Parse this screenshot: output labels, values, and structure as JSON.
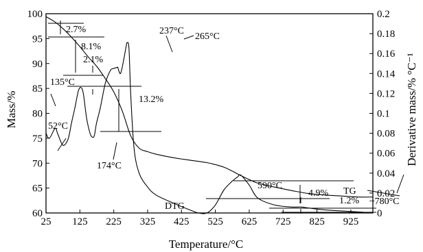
{
  "chart_data": {
    "type": "line",
    "xlabel": "Temperature/°C",
    "ylabel_left": "Mass/%",
    "ylabel_right": "Derivative mass/% °C⁻¹",
    "xlim": [
      25,
      990
    ],
    "ylim_left": [
      60,
      100
    ],
    "ylim_right": [
      0,
      0.2
    ],
    "grid": false,
    "x_ticks": [
      25,
      125,
      225,
      325,
      425,
      525,
      625,
      725,
      825,
      925
    ],
    "x_tick_labels": [
      "25",
      "125",
      "225",
      "325",
      "425",
      "525",
      "625",
      "725",
      "825",
      "925"
    ],
    "y_left_ticks": [
      60,
      65,
      70,
      75,
      80,
      85,
      90,
      95,
      100
    ],
    "y_left_tick_labels": [
      "60",
      "65",
      "70",
      "75",
      "80",
      "85",
      "90",
      "95",
      "100"
    ],
    "y_right_ticks": [
      0,
      0.02,
      0.04,
      0.06,
      0.08,
      0.1,
      0.12,
      0.14,
      0.16,
      0.18,
      0.2
    ],
    "y_right_tick_labels": [
      "0",
      "0.02",
      "0.04",
      "0.06",
      "0.08",
      "0.1",
      "0.12",
      "0.14",
      "0.16",
      "0.18",
      "0.2"
    ],
    "series": [
      {
        "name": "TG",
        "axis": "left",
        "x": [
          25,
          50,
          75,
          100,
          125,
          150,
          175,
          200,
          225,
          250,
          275,
          300,
          325,
          350,
          400,
          450,
          500,
          525,
          550,
          575,
          600,
          625,
          650,
          700,
          750,
          800,
          850,
          900,
          950,
          990
        ],
        "y": [
          99.4,
          98.4,
          97.0,
          95.3,
          93.4,
          91.3,
          89.4,
          87.0,
          84.3,
          80.5,
          75.5,
          73.0,
          72.3,
          71.8,
          71.1,
          70.6,
          70.1,
          69.7,
          69.2,
          68.4,
          67.5,
          66.7,
          66.0,
          65.2,
          64.5,
          63.9,
          63.6,
          63.4,
          63.2,
          63.2
        ]
      },
      {
        "name": "DTG",
        "axis": "right",
        "x": [
          25,
          35,
          52,
          60,
          75,
          90,
          100,
          110,
          120,
          128,
          135,
          145,
          155,
          162,
          168,
          174,
          185,
          200,
          215,
          225,
          235,
          237,
          245,
          255,
          262,
          265,
          270,
          275,
          285,
          300,
          325,
          350,
          400,
          450,
          475,
          500,
          525,
          550,
          575,
          590,
          600,
          625,
          650,
          700,
          750,
          780,
          800,
          850,
          900,
          950,
          990
        ],
        "y": [
          0.08,
          0.075,
          0.085,
          0.079,
          0.068,
          0.074,
          0.09,
          0.105,
          0.122,
          0.126,
          0.12,
          0.095,
          0.08,
          0.076,
          0.078,
          0.09,
          0.105,
          0.13,
          0.143,
          0.145,
          0.146,
          0.146,
          0.14,
          0.155,
          0.168,
          0.171,
          0.165,
          0.12,
          0.065,
          0.04,
          0.026,
          0.018,
          0.01,
          0.003,
          0.0,
          0.0,
          0.008,
          0.023,
          0.032,
          0.036,
          0.038,
          0.028,
          0.015,
          0.008,
          0.006,
          0.006,
          0.005,
          0.003,
          0.002,
          0.001,
          0.0
        ]
      }
    ],
    "series_labels": [
      "TG",
      "DTG"
    ],
    "annotations": {
      "peaks": [
        "52°C",
        "135°C",
        "174°C",
        "237°C",
        "265°C",
        "590°C",
        "~780°C"
      ],
      "mass_losses": [
        "2.7%",
        "8.1%",
        "2.1%",
        "13.2%",
        "4.9%",
        "1.2%"
      ]
    }
  }
}
